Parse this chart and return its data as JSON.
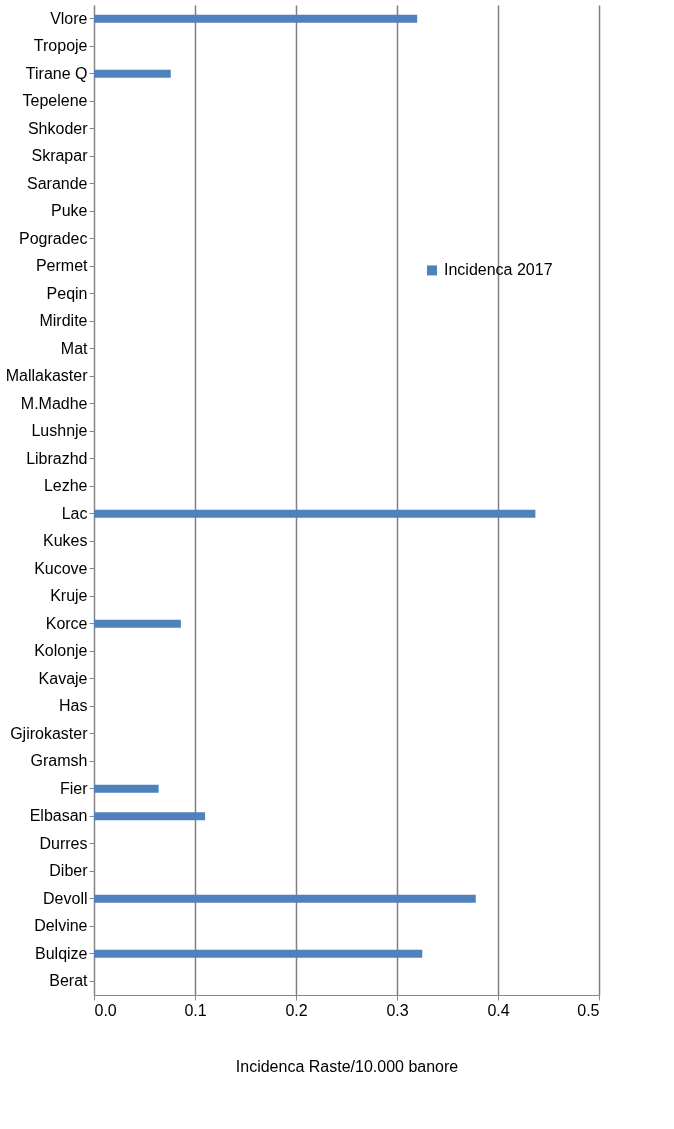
{
  "chart_data": {
    "type": "bar",
    "orientation": "horizontal",
    "xlabel": "Incidenca Raste/10.000 banore",
    "categories": [
      "Vlore",
      "Tropoje",
      "Tirane Q",
      "Tepelene",
      "Shkoder",
      "Skrapar",
      "Sarande",
      "Puke",
      "Pogradec",
      "Permet",
      "Peqin",
      "Mirdite",
      "Mat",
      "Mallakaster",
      "M.Madhe",
      "Lushnje",
      "Librazhd",
      "Lezhe",
      "Lac",
      "Kukes",
      "Kucove",
      "Kruje",
      "Korce",
      "Kolonje",
      "Kavaje",
      "Has",
      "Gjirokaster",
      "Gramsh",
      "Fier",
      "Elbasan",
      "Durres",
      "Diber",
      "Devoll",
      "Delvine",
      "Bulqize",
      "Berat"
    ],
    "series": [
      {
        "name": "Incidenca 2017",
        "color": "#4f81bd",
        "values": [
          0.32,
          0,
          0.076,
          0,
          0,
          0,
          0,
          0,
          0,
          0,
          0,
          0,
          0,
          0,
          0,
          0,
          0,
          0,
          0.437,
          0,
          0,
          0,
          0.086,
          0,
          0,
          0,
          0,
          0,
          0.064,
          0.11,
          0,
          0,
          0.378,
          0,
          0.325,
          0
        ]
      }
    ],
    "xlim": [
      0,
      0.5
    ],
    "xticks": [
      {
        "value": 0,
        "label": "0.0"
      },
      0.1,
      0.2,
      0.3,
      0.4,
      0.5
    ],
    "grid": "x",
    "legend": "right"
  }
}
